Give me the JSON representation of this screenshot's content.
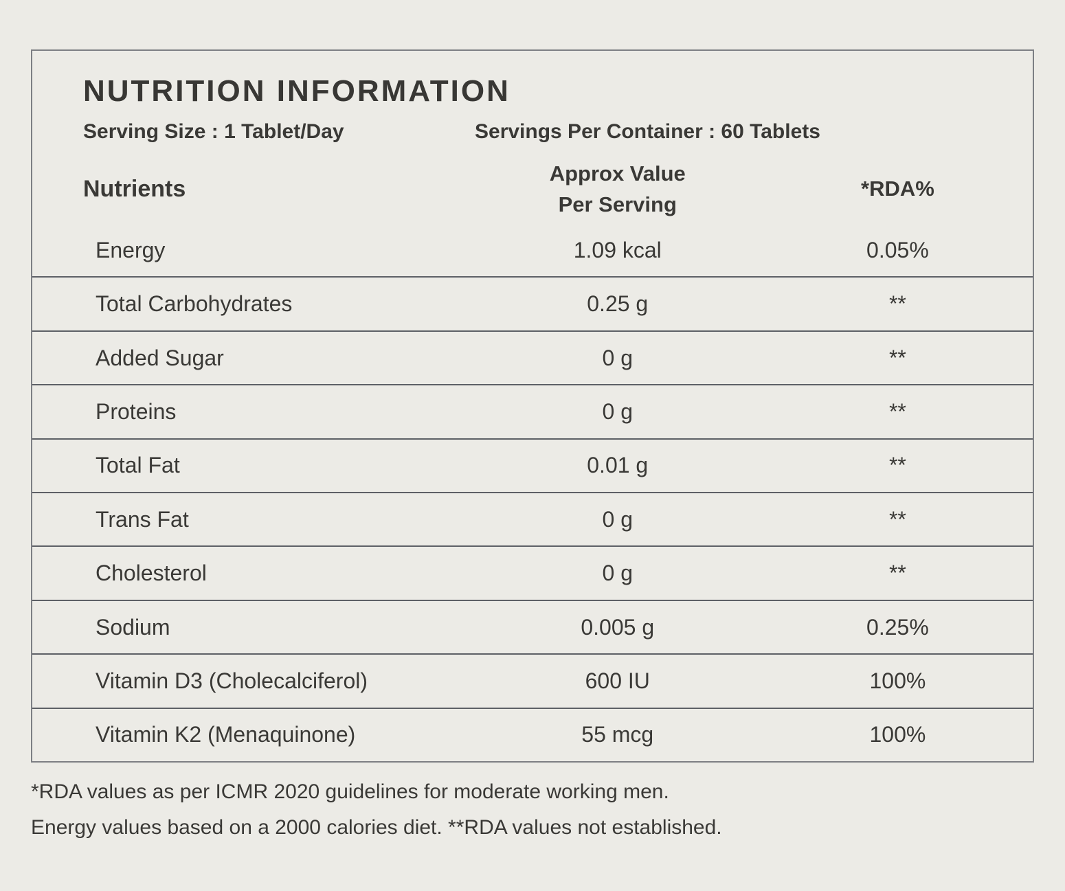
{
  "label": {
    "title": "NUTRITION INFORMATION",
    "serving": {
      "size": "Serving Size : 1 Tablet/Day",
      "per_container": "Servings Per Container : 60 Tablets"
    },
    "columns": {
      "nutrients": "Nutrients",
      "value_line1": "Approx Value",
      "value_line2": "Per Serving",
      "rda": "*RDA%"
    },
    "rows": [
      {
        "name": "Energy",
        "value": "1.09 kcal",
        "rda": "0.05%"
      },
      {
        "name": "Total Carbohydrates",
        "value": "0.25 g",
        "rda": "**"
      },
      {
        "name": "Added Sugar",
        "value": "0 g",
        "rda": "**"
      },
      {
        "name": "Proteins",
        "value": "0 g",
        "rda": "**"
      },
      {
        "name": "Total Fat",
        "value": "0.01 g",
        "rda": "**"
      },
      {
        "name": "Trans Fat",
        "value": "0 g",
        "rda": "**"
      },
      {
        "name": "Cholesterol",
        "value": "0 g",
        "rda": "**"
      },
      {
        "name": "Sodium",
        "value": "0.005 g",
        "rda": "0.25%"
      },
      {
        "name": "Vitamin D3 (Cholecalciferol)",
        "value": "600 IU",
        "rda": "100%"
      },
      {
        "name": "Vitamin K2 (Menaquinone)",
        "value": "55 mcg",
        "rda": "100%"
      }
    ],
    "footnotes": [
      "*RDA values as per ICMR 2020 guidelines for moderate working men.",
      "Energy values based on a 2000 calories diet. **RDA values not established."
    ],
    "colors": {
      "background": "#ECEBE6",
      "text": "#3A3936",
      "divider": "#5D6066",
      "border": "#7D7F84"
    }
  }
}
